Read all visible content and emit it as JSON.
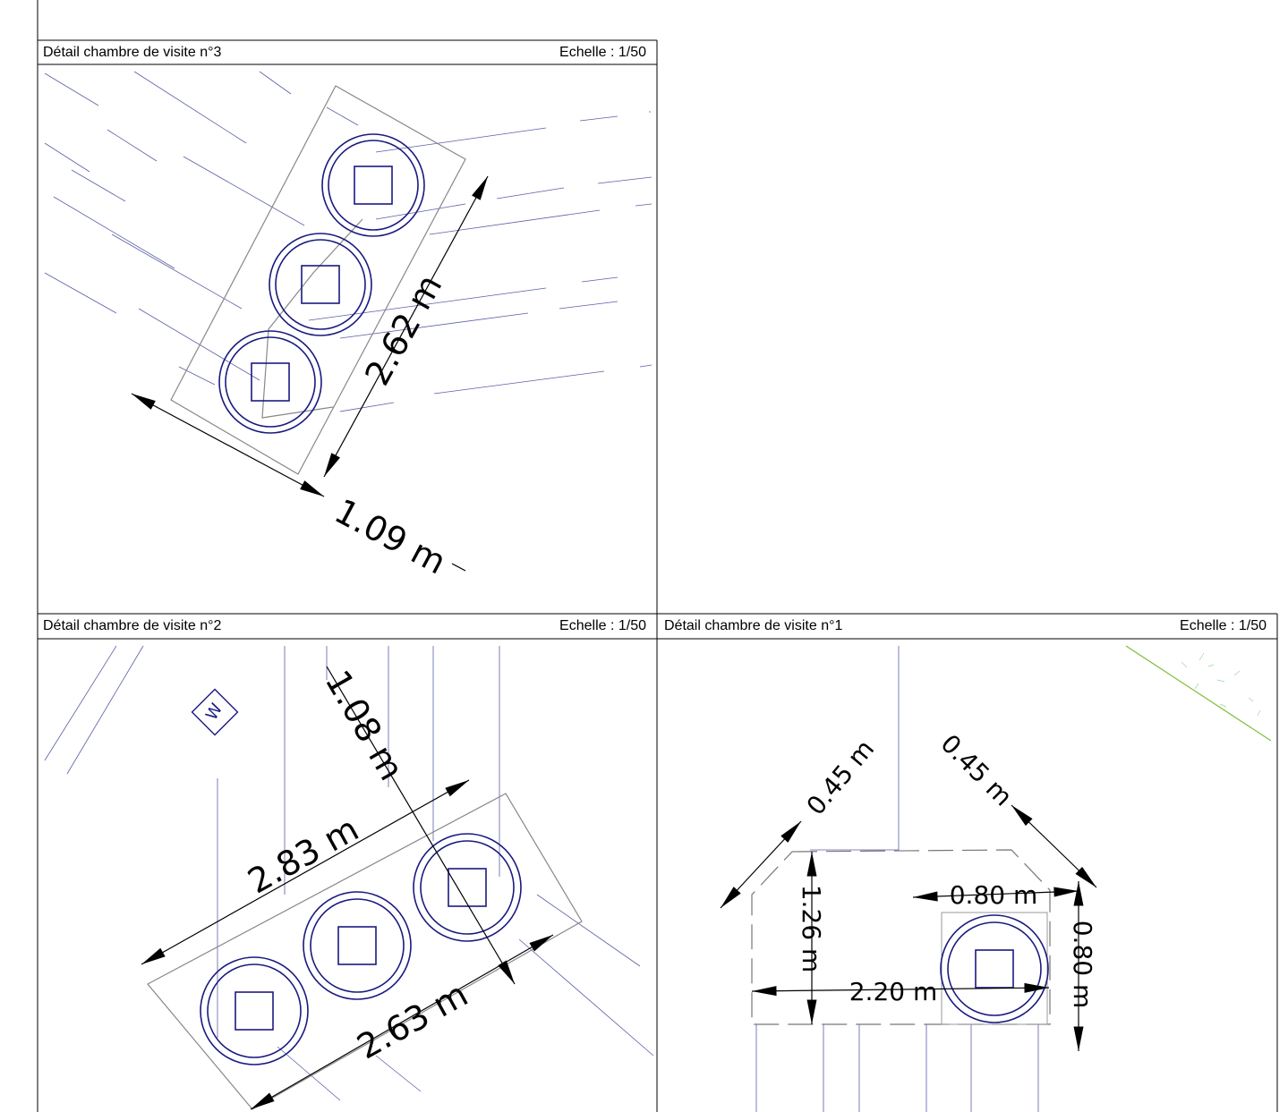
{
  "panels": [
    {
      "title": "Détail chambre de visite n°3",
      "scale": "Echelle : 1/50",
      "dimensions": [
        "2.62 m",
        "1.09 m"
      ]
    },
    {
      "title": "Détail chambre de visite n°2",
      "scale": "Echelle : 1/50",
      "dimensions": [
        "2.83 m",
        "2.63 m",
        "1.08 m"
      ]
    },
    {
      "title": "Détail chambre de visite n°1",
      "scale": "Echelle : 1/50",
      "dimensions": [
        "0.45 m",
        "0.45 m",
        "1.26 m",
        "0.80 m",
        "0.80 m",
        "2.20 m"
      ]
    }
  ]
}
